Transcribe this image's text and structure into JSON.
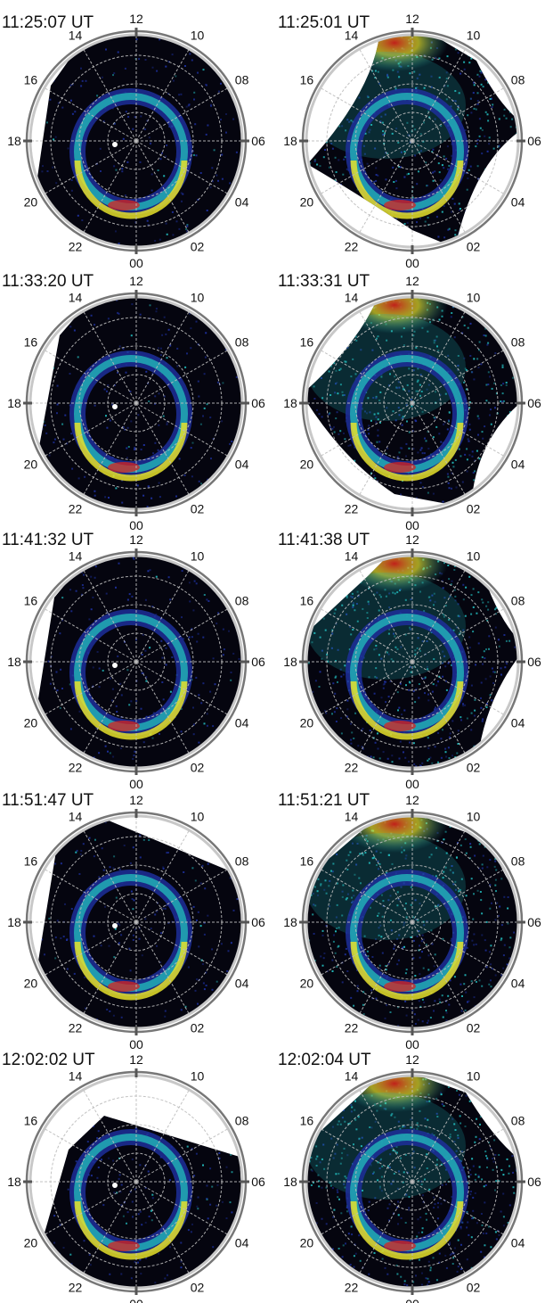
{
  "panels": [
    {
      "id": "p1",
      "time": "11:25:07 UT",
      "imager": "left"
    },
    {
      "id": "p2",
      "time": "11:25:01 UT",
      "imager": "right"
    },
    {
      "id": "p3",
      "time": "11:33:20 UT",
      "imager": "left"
    },
    {
      "id": "p4",
      "time": "11:33:31 UT",
      "imager": "right"
    },
    {
      "id": "p5",
      "time": "11:41:32 UT",
      "imager": "left"
    },
    {
      "id": "p6",
      "time": "11:41:38 UT",
      "imager": "right"
    },
    {
      "id": "p7",
      "time": "11:51:47 UT",
      "imager": "left"
    },
    {
      "id": "p8",
      "time": "11:51:21 UT",
      "imager": "right"
    },
    {
      "id": "p9",
      "time": "12:02:02 UT",
      "imager": "left"
    },
    {
      "id": "p10",
      "time": "12:02:04 UT",
      "imager": "right"
    }
  ],
  "mlt_labels": [
    "12",
    "10",
    "08",
    "06",
    "04",
    "02",
    "00",
    "22",
    "20",
    "18",
    "16",
    "14"
  ],
  "colors": {
    "background": "#ffffff",
    "sky": "#05050f",
    "grid": "#bdbdbd",
    "frame_outer": "#777777",
    "frame_inner": "#c8c8c8",
    "oval_low": "#1d2f9a",
    "oval_mid": "#22b6b8",
    "oval_high": "#e6e22b",
    "oval_peak": "#d8231f",
    "dayside_glow": "#c0201a"
  }
}
